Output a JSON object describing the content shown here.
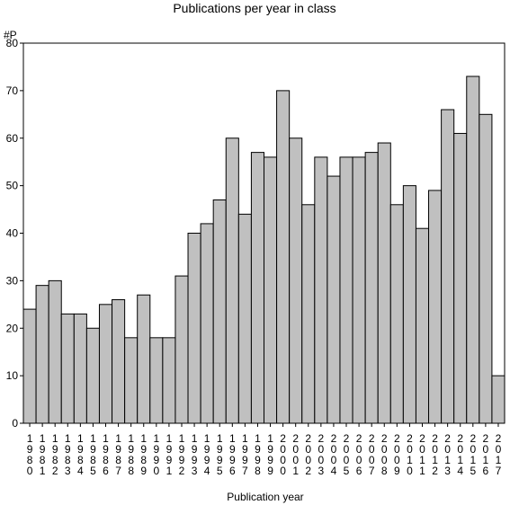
{
  "chart_data": {
    "type": "bar",
    "title": "Publications per year in class",
    "ylabel": "#P",
    "xlabel": "Publication year",
    "ylim": [
      0,
      80
    ],
    "yticks": [
      0,
      10,
      20,
      30,
      40,
      50,
      60,
      70,
      80
    ],
    "grid": false,
    "categories": [
      "1980",
      "1981",
      "1982",
      "1983",
      "1984",
      "1985",
      "1986",
      "1987",
      "1988",
      "1989",
      "1990",
      "1991",
      "1992",
      "1993",
      "1994",
      "1995",
      "1996",
      "1997",
      "1998",
      "1999",
      "2000",
      "2001",
      "2002",
      "2003",
      "2004",
      "2005",
      "2006",
      "2007",
      "2008",
      "2009",
      "2010",
      "2011",
      "2012",
      "2013",
      "2014",
      "2015",
      "2016",
      "2017"
    ],
    "values": [
      24,
      29,
      30,
      23,
      23,
      20,
      25,
      26,
      18,
      27,
      18,
      18,
      31,
      40,
      42,
      47,
      60,
      44,
      57,
      56,
      70,
      60,
      46,
      56,
      52,
      56,
      56,
      57,
      59,
      46,
      50,
      41,
      49,
      66,
      61,
      73,
      65,
      10
    ],
    "colors": {
      "bar_fill": "#c0c0c0",
      "bar_stroke": "#000000",
      "axis": "#000000"
    }
  }
}
